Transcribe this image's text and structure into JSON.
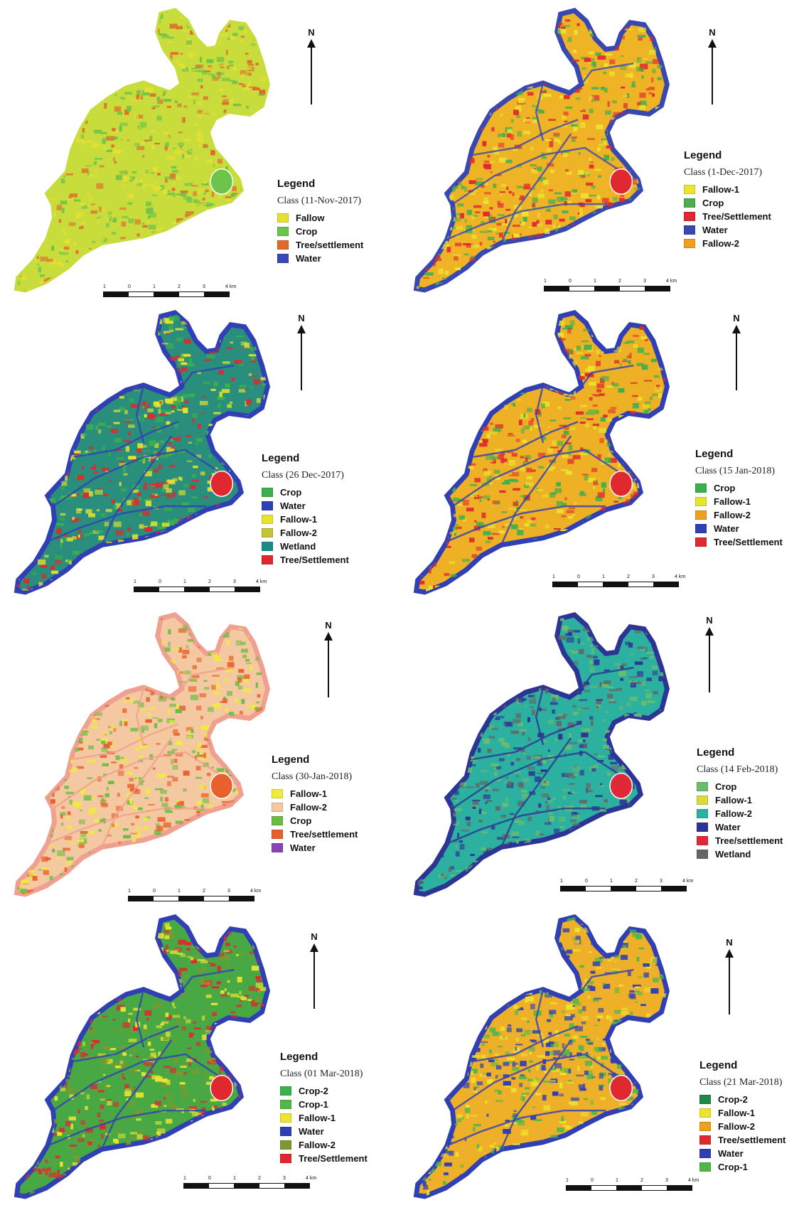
{
  "north_label": "N",
  "scale": {
    "ticks": [
      "1",
      "0",
      "1",
      "2",
      "3",
      "4 km"
    ]
  },
  "panels": [
    {
      "legend_title": "Legend",
      "class_label": "Class (11-Nov-2017)",
      "items": [
        {
          "label": "Fallow",
          "color": "#e8e030"
        },
        {
          "label": "Crop",
          "color": "#6cc44a"
        },
        {
          "label": "Tree/settlement",
          "color": "#e06a2c"
        },
        {
          "label": "Water",
          "color": "#3848b8"
        }
      ],
      "map_colors": {
        "base": "#c8dc3c",
        "patch": [
          "#6cc44a",
          "#e8e030",
          "#e06a2c"
        ],
        "rim": "#c8dc3c",
        "lake": "#6cc44a"
      }
    },
    {
      "legend_title": "Legend",
      "class_label": "Class (1-Dec-2017)",
      "items": [
        {
          "label": "Fallow-1",
          "color": "#ece430"
        },
        {
          "label": "Crop",
          "color": "#4cae4c"
        },
        {
          "label": "Tree/Settlement",
          "color": "#e02830"
        },
        {
          "label": "Water",
          "color": "#3848b0"
        },
        {
          "label": "Fallow-2",
          "color": "#eea020"
        }
      ],
      "map_colors": {
        "base": "#eeb426",
        "patch": [
          "#ece430",
          "#e02830",
          "#4cae4c"
        ],
        "rim": "#3848b0",
        "lake": "#e02830"
      }
    },
    {
      "legend_title": "Legend",
      "class_label": "Class (26 Dec-2017)",
      "items": [
        {
          "label": "Crop",
          "color": "#3cb04c"
        },
        {
          "label": "Water",
          "color": "#3040b4"
        },
        {
          "label": "Fallow-1",
          "color": "#e8e42c"
        },
        {
          "label": "Fallow-2",
          "color": "#c4c438"
        },
        {
          "label": "Wetland",
          "color": "#1c8a88"
        },
        {
          "label": "Tree/Settlement",
          "color": "#e02830"
        }
      ],
      "map_colors": {
        "base": "#2a8e7c",
        "patch": [
          "#3cb04c",
          "#e8e42c",
          "#e02830"
        ],
        "rim": "#3040b4",
        "lake": "#e02830"
      }
    },
    {
      "legend_title": "Legend",
      "class_label": "Class (15 Jan-2018)",
      "items": [
        {
          "label": "Crop",
          "color": "#3cb04c"
        },
        {
          "label": "Fallow-1",
          "color": "#e8e42c"
        },
        {
          "label": "Fallow-2",
          "color": "#eea020"
        },
        {
          "label": "Water",
          "color": "#3040b4"
        },
        {
          "label": "Tree/Settlement",
          "color": "#e02830"
        }
      ],
      "map_colors": {
        "base": "#eeb024",
        "patch": [
          "#3cb04c",
          "#e8e42c",
          "#e02830"
        ],
        "rim": "#3040b4",
        "lake": "#e02830"
      }
    },
    {
      "legend_title": "Legend",
      "class_label": "Class (30-Jan-2018)",
      "items": [
        {
          "label": "Fallow-1",
          "color": "#f0ec3c"
        },
        {
          "label": "Fallow-2",
          "color": "#f4c8a0"
        },
        {
          "label": "Crop",
          "color": "#6cbc44"
        },
        {
          "label": "Tree/settlement",
          "color": "#e8602c"
        },
        {
          "label": "Water",
          "color": "#8844b8"
        }
      ],
      "map_colors": {
        "base": "#f4c8a0",
        "patch": [
          "#6cbc44",
          "#f0ec3c",
          "#e8602c"
        ],
        "rim": "#f0a090",
        "lake": "#e8602c"
      }
    },
    {
      "legend_title": "Legend",
      "class_label": "Class (14 Feb-2018)",
      "items": [
        {
          "label": "Crop",
          "color": "#6cbc70"
        },
        {
          "label": "Fallow-1",
          "color": "#d8dc3c"
        },
        {
          "label": "Fallow-2",
          "color": "#28b4a4"
        },
        {
          "label": "Water",
          "color": "#2c3494"
        },
        {
          "label": "Tree/settlement",
          "color": "#e02838"
        },
        {
          "label": "Wetland",
          "color": "#666666"
        }
      ],
      "map_colors": {
        "base": "#2cb0a0",
        "patch": [
          "#6cbc70",
          "#2c3494",
          "#666666"
        ],
        "rim": "#2c3494",
        "lake": "#e02838"
      }
    },
    {
      "legend_title": "Legend",
      "class_label": "Class (01 Mar-2018)",
      "items": [
        {
          "label": "Crop-2",
          "color": "#3cb04c"
        },
        {
          "label": "Crop-1",
          "color": "#50b848"
        },
        {
          "label": "Fallow-1",
          "color": "#ece430"
        },
        {
          "label": "Water",
          "color": "#3040b4"
        },
        {
          "label": "Fallow-2",
          "color": "#7c9830"
        },
        {
          "label": "Tree/Settlement",
          "color": "#e02830"
        }
      ],
      "map_colors": {
        "base": "#48a844",
        "patch": [
          "#ece430",
          "#7c9830",
          "#e02830"
        ],
        "rim": "#3040b4",
        "lake": "#e02830"
      }
    },
    {
      "legend_title": "Legend",
      "class_label": "Class (21 Mar-2018)",
      "items": [
        {
          "label": "Crop-2",
          "color": "#208848"
        },
        {
          "label": "Fallow-1",
          "color": "#ece430"
        },
        {
          "label": "Fallow-2",
          "color": "#eea020"
        },
        {
          "label": "Tree/settlement",
          "color": "#e02830"
        },
        {
          "label": "Water",
          "color": "#3040b4"
        },
        {
          "label": "Crop-1",
          "color": "#50b848"
        }
      ],
      "map_colors": {
        "base": "#eeb028",
        "patch": [
          "#ece430",
          "#50b848",
          "#3040b4"
        ],
        "rim": "#3040b4",
        "lake": "#e02830"
      }
    }
  ]
}
